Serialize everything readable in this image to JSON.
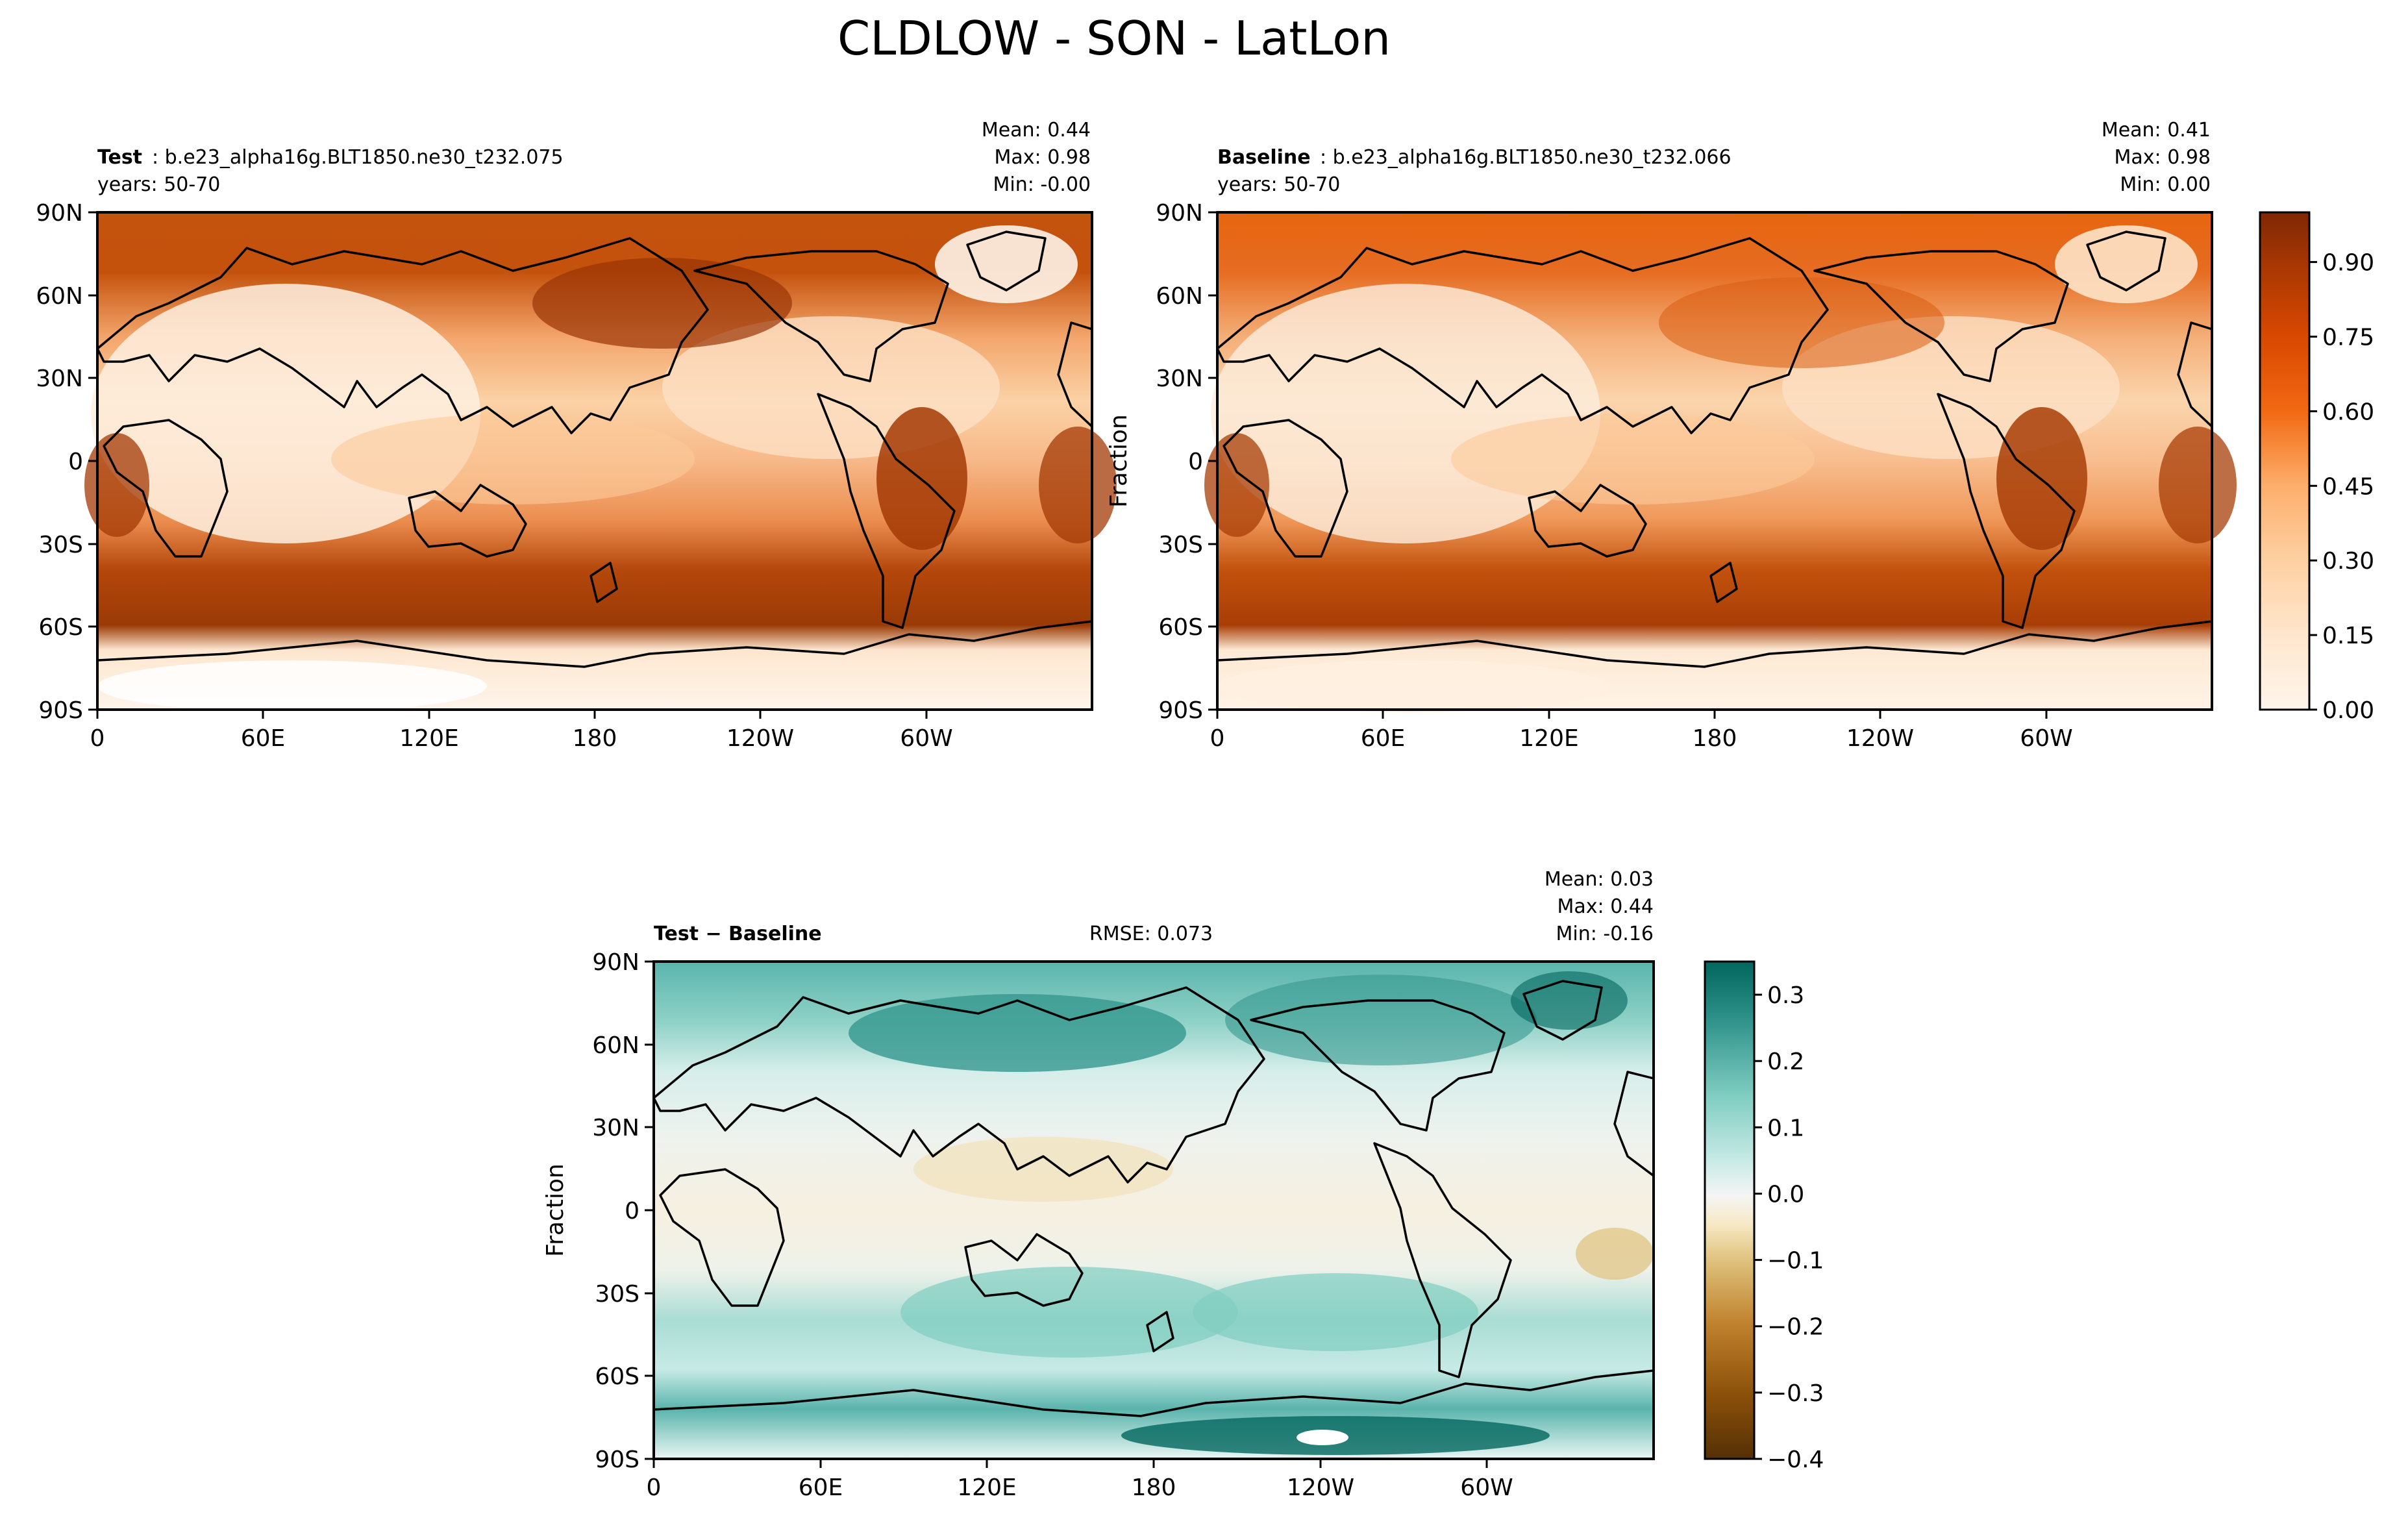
{
  "figure": {
    "title": "CLDLOW - SON - LatLon"
  },
  "chart_data": [
    {
      "type": "heatmap",
      "panel": "test",
      "label_bold": "Test",
      "label_rest": ": b.e23_alpha16g.BLT1850.ne30_t232.075",
      "years": "years: 50-70",
      "stats": [
        "Mean:  0.44",
        "Max:  0.98",
        "Min: -0.00"
      ],
      "ylabel": "",
      "x_ticks": [
        "0",
        "60E",
        "120E",
        "180",
        "120W",
        "60W"
      ],
      "y_ticks": [
        "90N",
        "60N",
        "30N",
        "0",
        "30S",
        "60S",
        "90S"
      ],
      "xlim": [
        0,
        360
      ],
      "ylim": [
        -90,
        90
      ],
      "vmin": 0.0,
      "vmax": 1.0,
      "colormap": "Oranges"
    },
    {
      "type": "heatmap",
      "panel": "baseline",
      "label_bold": "Baseline",
      "label_rest": ": b.e23_alpha16g.BLT1850.ne30_t232.066",
      "years": "years: 50-70",
      "stats": [
        "Mean:  0.41",
        "Max:  0.98",
        "Min:  0.00"
      ],
      "ylabel": "Fraction",
      "x_ticks": [
        "0",
        "60E",
        "120E",
        "180",
        "120W",
        "60W"
      ],
      "y_ticks": [
        "90N",
        "60N",
        "30N",
        "0",
        "30S",
        "60S",
        "90S"
      ],
      "xlim": [
        0,
        360
      ],
      "ylim": [
        -90,
        90
      ],
      "vmin": 0.0,
      "vmax": 1.0,
      "colormap": "Oranges",
      "colorbar_ticks": [
        "0.00",
        "0.15",
        "0.30",
        "0.45",
        "0.60",
        "0.75",
        "0.90"
      ],
      "colorbar_values": [
        0.0,
        0.15,
        0.3,
        0.45,
        0.6,
        0.75,
        0.9
      ]
    },
    {
      "type": "heatmap",
      "panel": "diff",
      "label_bold": "Test − Baseline",
      "rmse": "RMSE: 0.073",
      "stats": [
        "Mean:  0.03",
        "Max:  0.44",
        "Min: -0.16"
      ],
      "ylabel": "Fraction",
      "x_ticks": [
        "0",
        "60E",
        "120E",
        "180",
        "120W",
        "60W"
      ],
      "y_ticks": [
        "90N",
        "60N",
        "30N",
        "0",
        "30S",
        "60S",
        "90S"
      ],
      "xlim": [
        0,
        360
      ],
      "ylim": [
        -90,
        90
      ],
      "vmin": -0.4,
      "vmax": 0.35,
      "colormap": "BrBG",
      "colorbar_ticks": [
        "0.3",
        "0.2",
        "0.1",
        "0.0",
        "−0.1",
        "−0.2",
        "−0.3",
        "−0.4"
      ],
      "colorbar_values": [
        0.3,
        0.2,
        0.1,
        0.0,
        -0.1,
        -0.2,
        -0.3,
        -0.4
      ]
    }
  ]
}
